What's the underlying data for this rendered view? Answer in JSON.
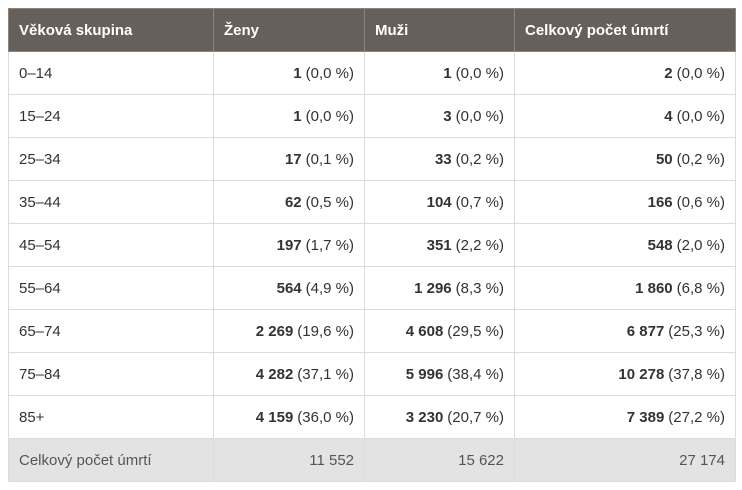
{
  "table": {
    "header": [
      "Věková skupina",
      "Ženy",
      "Muži",
      "Celkový počet úmrtí"
    ],
    "rows": [
      {
        "age": "0–14",
        "cells": [
          {
            "count": "1",
            "share": "(0,0 %)"
          },
          {
            "count": "1",
            "share": "(0,0 %)"
          },
          {
            "count": "2",
            "share": "(0,0 %)"
          }
        ]
      },
      {
        "age": "15–24",
        "cells": [
          {
            "count": "1",
            "share": "(0,0 %)"
          },
          {
            "count": "3",
            "share": "(0,0 %)"
          },
          {
            "count": "4",
            "share": "(0,0 %)"
          }
        ]
      },
      {
        "age": "25–34",
        "cells": [
          {
            "count": "17",
            "share": "(0,1 %)"
          },
          {
            "count": "33",
            "share": "(0,2 %)"
          },
          {
            "count": "50",
            "share": "(0,2 %)"
          }
        ]
      },
      {
        "age": "35–44",
        "cells": [
          {
            "count": "62",
            "share": "(0,5 %)"
          },
          {
            "count": "104",
            "share": "(0,7 %)"
          },
          {
            "count": "166",
            "share": "(0,6 %)"
          }
        ]
      },
      {
        "age": "45–54",
        "cells": [
          {
            "count": "197",
            "share": "(1,7 %)"
          },
          {
            "count": "351",
            "share": "(2,2 %)"
          },
          {
            "count": "548",
            "share": "(2,0 %)"
          }
        ]
      },
      {
        "age": "55–64",
        "cells": [
          {
            "count": "564",
            "share": "(4,9 %)"
          },
          {
            "count": "1 296",
            "share": "(8,3 %)"
          },
          {
            "count": "1 860",
            "share": "(6,8 %)"
          }
        ]
      },
      {
        "age": "65–74",
        "cells": [
          {
            "count": "2 269",
            "share": "(19,6 %)"
          },
          {
            "count": "4 608",
            "share": "(29,5 %)"
          },
          {
            "count": "6 877",
            "share": "(25,3 %)"
          }
        ]
      },
      {
        "age": "75–84",
        "cells": [
          {
            "count": "4 282",
            "share": "(37,1 %)"
          },
          {
            "count": "5 996",
            "share": "(38,4 %)"
          },
          {
            "count": "10 278",
            "share": "(37,8 %)"
          }
        ]
      },
      {
        "age": "85+",
        "cells": [
          {
            "count": "4 159",
            "share": "(36,0 %)"
          },
          {
            "count": "3 230",
            "share": "(20,7 %)"
          },
          {
            "count": "7 389",
            "share": "(27,2 %)"
          }
        ]
      }
    ],
    "footer": [
      "Celkový počet úmrtí",
      "11 552",
      "15 622",
      "27 174"
    ]
  }
}
